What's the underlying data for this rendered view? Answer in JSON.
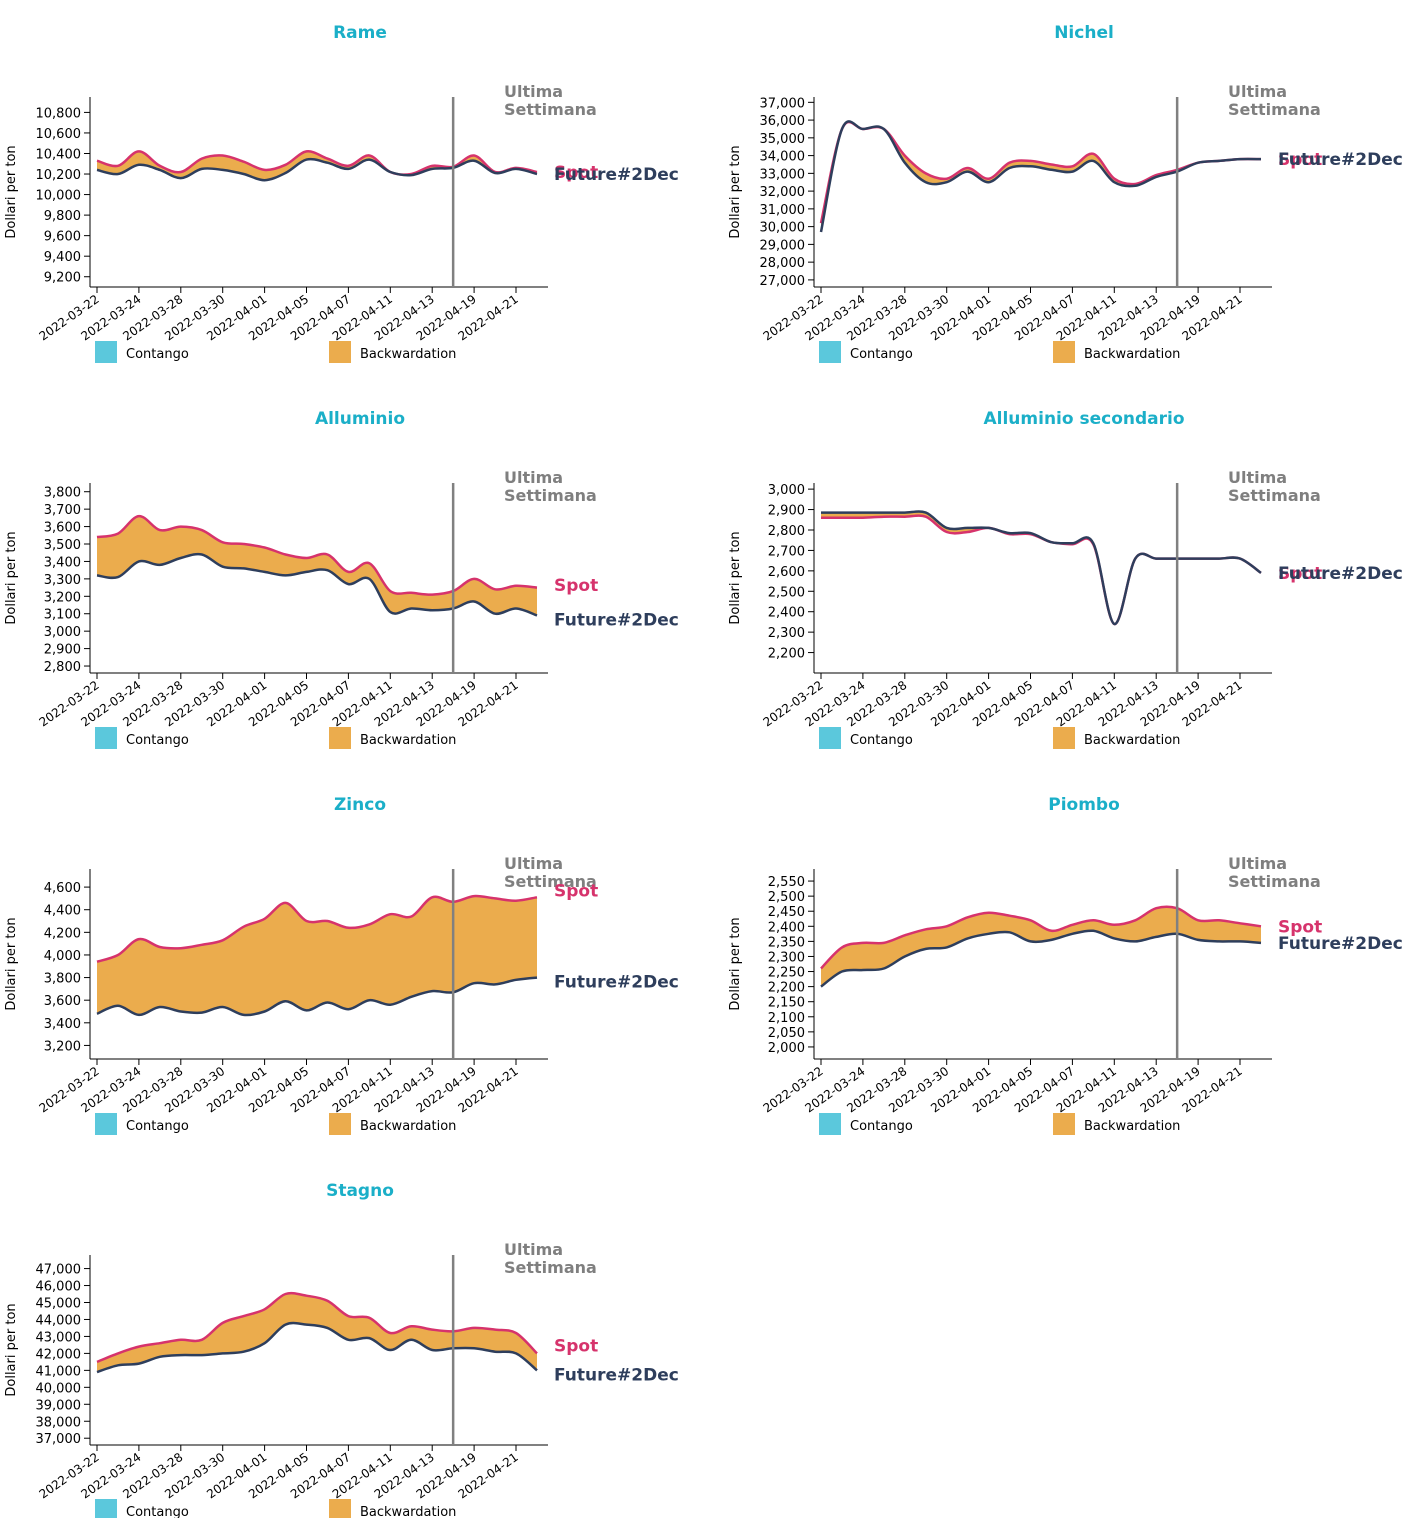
{
  "meta": {
    "dates": [
      "2022-03-22",
      "2022-03-24",
      "2022-03-28",
      "2022-03-30",
      "2022-04-01",
      "2022-04-05",
      "2022-04-07",
      "2022-04-11",
      "2022-04-13",
      "2022-04-19",
      "2022-04-21"
    ],
    "colors": {
      "title": "#1bafc8",
      "spot": "#d6336c",
      "future": "#2e3e5c",
      "backwardation": "#ebac4d",
      "contango": "#5bc8dc",
      "marker": "#808080",
      "marker_text": "#7f7f7f"
    },
    "legend": {
      "contango": "Contango",
      "backwardation": "Backwardation"
    },
    "marker": {
      "line1": "Ultima",
      "line2": "Settimana",
      "at_index": 8.5
    },
    "series_labels": {
      "spot": "Spot",
      "future": "Future#2Dec"
    },
    "ylabel": "Dollari per ton"
  },
  "chart_data": [
    {
      "type": "area",
      "title": "Rame",
      "ylabel": "Dollari per ton",
      "ylim": [
        9100,
        10950
      ],
      "yticks": [
        9200,
        9400,
        9600,
        9800,
        10000,
        10200,
        10400,
        10600,
        10800
      ],
      "x": [
        0,
        0.5,
        1,
        1.5,
        2,
        2.5,
        3,
        3.5,
        4,
        4.5,
        5,
        5.5,
        6,
        6.5,
        7,
        7.5,
        8,
        8.5,
        9,
        9.5,
        10,
        10.5
      ],
      "spot": [
        10330,
        10280,
        10420,
        10280,
        10220,
        10350,
        10380,
        10320,
        10240,
        10290,
        10420,
        10350,
        10280,
        10380,
        10220,
        10200,
        10280,
        10270,
        10380,
        10220,
        10260,
        10220
      ],
      "future": [
        10240,
        10200,
        10290,
        10240,
        10160,
        10250,
        10240,
        10200,
        10140,
        10210,
        10340,
        10310,
        10250,
        10340,
        10220,
        10190,
        10250,
        10260,
        10330,
        10210,
        10250,
        10200
      ]
    },
    {
      "type": "area",
      "title": "Nichel",
      "ylabel": "Dollari per ton",
      "ylim": [
        26600,
        37300
      ],
      "yticks": [
        27000,
        28000,
        29000,
        30000,
        31000,
        32000,
        33000,
        34000,
        35000,
        36000,
        37000
      ],
      "x": [
        0,
        0.5,
        1,
        1.5,
        2,
        2.5,
        3,
        3.5,
        4,
        4.5,
        5,
        5.5,
        6,
        6.5,
        7,
        7.5,
        8,
        8.5,
        9,
        9.5,
        10,
        10.5
      ],
      "spot": [
        30200,
        35500,
        35500,
        35500,
        34000,
        33000,
        32700,
        33300,
        32700,
        33600,
        33700,
        33500,
        33400,
        34100,
        32700,
        32400,
        32900,
        33200,
        33600,
        33700,
        33800,
        33800
      ],
      "future": [
        29700,
        35500,
        35500,
        35500,
        33600,
        32500,
        32500,
        33100,
        32500,
        33300,
        33400,
        33200,
        33100,
        33700,
        32500,
        32300,
        32800,
        33100,
        33600,
        33700,
        33800,
        33800
      ]
    },
    {
      "type": "area",
      "title": "Alluminio",
      "ylabel": "Dollari per ton",
      "ylim": [
        2760,
        3850
      ],
      "yticks": [
        2800,
        2900,
        3000,
        3100,
        3200,
        3300,
        3400,
        3500,
        3600,
        3700,
        3800
      ],
      "x": [
        0,
        0.5,
        1,
        1.5,
        2,
        2.5,
        3,
        3.5,
        4,
        4.5,
        5,
        5.5,
        6,
        6.5,
        7,
        7.5,
        8,
        8.5,
        9,
        9.5,
        10,
        10.5
      ],
      "spot": [
        3540,
        3560,
        3660,
        3580,
        3600,
        3580,
        3510,
        3500,
        3480,
        3440,
        3420,
        3440,
        3340,
        3390,
        3230,
        3220,
        3210,
        3230,
        3300,
        3240,
        3260,
        3250
      ],
      "future": [
        3320,
        3310,
        3400,
        3380,
        3420,
        3440,
        3370,
        3360,
        3340,
        3320,
        3340,
        3350,
        3270,
        3300,
        3110,
        3130,
        3120,
        3130,
        3170,
        3100,
        3130,
        3090
      ],
      "annotations": {
        "spot_y": 3220,
        "future_y": 3090
      }
    },
    {
      "type": "area",
      "title": "Alluminio secondario",
      "ylabel": "Dollari per ton",
      "ylim": [
        2100,
        3030
      ],
      "yticks": [
        2200,
        2300,
        2400,
        2500,
        2600,
        2700,
        2800,
        2900,
        3000
      ],
      "x": [
        0,
        0.5,
        1,
        1.5,
        2,
        2.5,
        3,
        3.5,
        4,
        4.5,
        5,
        5.5,
        6,
        6.5,
        7,
        7.5,
        8,
        8.5,
        9,
        9.5,
        10,
        10.5
      ],
      "spot": [
        2860,
        2860,
        2860,
        2865,
        2865,
        2865,
        2790,
        2790,
        2810,
        2780,
        2780,
        2740,
        2730,
        2730,
        2340,
        2660,
        2660,
        2660,
        2660,
        2660,
        2660,
        2590
      ],
      "future": [
        2885,
        2885,
        2885,
        2885,
        2885,
        2885,
        2810,
        2810,
        2810,
        2785,
        2785,
        2740,
        2735,
        2735,
        2340,
        2660,
        2660,
        2660,
        2660,
        2660,
        2660,
        2590
      ]
    },
    {
      "type": "area",
      "title": "Zinco",
      "ylabel": "Dollari per ton",
      "ylim": [
        3080,
        4760
      ],
      "yticks": [
        3200,
        3400,
        3600,
        3800,
        4000,
        4200,
        4400,
        4600
      ],
      "x": [
        0,
        0.5,
        1,
        1.5,
        2,
        2.5,
        3,
        3.5,
        4,
        4.5,
        5,
        5.5,
        6,
        6.5,
        7,
        7.5,
        8,
        8.5,
        9,
        9.5,
        10,
        10.5
      ],
      "spot": [
        3940,
        4000,
        4140,
        4070,
        4060,
        4090,
        4130,
        4250,
        4320,
        4460,
        4300,
        4300,
        4240,
        4270,
        4360,
        4340,
        4510,
        4470,
        4520,
        4500,
        4480,
        4510
      ],
      "future": [
        3480,
        3550,
        3470,
        3540,
        3500,
        3490,
        3540,
        3470,
        3500,
        3590,
        3510,
        3580,
        3520,
        3600,
        3560,
        3630,
        3680,
        3670,
        3750,
        3740,
        3780,
        3800
      ],
      "annotations": {
        "spot_y": 4500,
        "future_y": 3800
      }
    },
    {
      "type": "area",
      "title": "Piombo",
      "ylabel": "Dollari per ton",
      "ylim": [
        1960,
        2590
      ],
      "yticks": [
        2000,
        2050,
        2100,
        2150,
        2200,
        2250,
        2300,
        2350,
        2400,
        2450,
        2500,
        2550
      ],
      "x": [
        0,
        0.5,
        1,
        1.5,
        2,
        2.5,
        3,
        3.5,
        4,
        4.5,
        5,
        5.5,
        6,
        6.5,
        7,
        7.5,
        8,
        8.5,
        9,
        9.5,
        10,
        10.5
      ],
      "spot": [
        2260,
        2330,
        2345,
        2345,
        2370,
        2390,
        2400,
        2430,
        2445,
        2435,
        2420,
        2385,
        2405,
        2420,
        2405,
        2420,
        2460,
        2460,
        2420,
        2420,
        2410,
        2400
      ],
      "future": [
        2200,
        2250,
        2255,
        2260,
        2300,
        2325,
        2330,
        2360,
        2375,
        2380,
        2350,
        2355,
        2375,
        2385,
        2360,
        2350,
        2365,
        2375,
        2355,
        2350,
        2350,
        2345
      ]
    },
    {
      "type": "area",
      "title": "Stagno",
      "ylabel": "Dollari per ton",
      "ylim": [
        36600,
        47800
      ],
      "yticks": [
        37000,
        38000,
        39000,
        40000,
        41000,
        42000,
        43000,
        44000,
        45000,
        46000,
        47000
      ],
      "x": [
        0,
        0.5,
        1,
        1.5,
        2,
        2.5,
        3,
        3.5,
        4,
        4.5,
        5,
        5.5,
        6,
        6.5,
        7,
        7.5,
        8,
        8.5,
        9,
        9.5,
        10,
        10.5
      ],
      "spot": [
        41500,
        42000,
        42400,
        42600,
        42800,
        42800,
        43800,
        44200,
        44600,
        45500,
        45400,
        45100,
        44200,
        44100,
        43200,
        43600,
        43400,
        43300,
        43500,
        43400,
        43200,
        42000
      ],
      "future": [
        40900,
        41300,
        41400,
        41800,
        41900,
        41900,
        42000,
        42100,
        42600,
        43700,
        43700,
        43500,
        42800,
        42900,
        42200,
        42800,
        42200,
        42300,
        42300,
        42100,
        42000,
        41000
      ],
      "annotations": {
        "spot_y": 42000,
        "future_y": 41000
      }
    }
  ]
}
